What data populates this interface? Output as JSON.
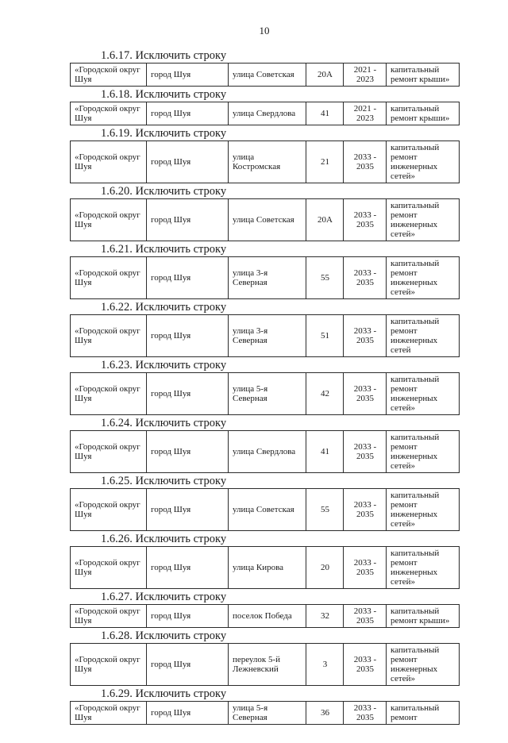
{
  "page_number": "10",
  "sections": [
    {
      "heading": "1.6.17. Исключить строку",
      "row": {
        "district": "«Городской округ Шуя",
        "city": "город Шуя",
        "street": "улица Советская",
        "house": "20А",
        "years": "2021 - 2023",
        "work": "капитальный ремонт крыши»"
      }
    },
    {
      "heading": "1.6.18. Исключить строку",
      "row": {
        "district": "«Городской округ Шуя",
        "city": "город Шуя",
        "street": "улица Свердлова",
        "house": "41",
        "years": "2021 - 2023",
        "work": "капитальный ремонт крыши»"
      }
    },
    {
      "heading": "1.6.19. Исключить строку",
      "row": {
        "district": "«Городской округ Шуя",
        "city": "город Шуя",
        "street": "улица Костромская",
        "house": "21",
        "years": "2033 - 2035",
        "work": "капитальный ремонт инженерных сетей»"
      }
    },
    {
      "heading": "1.6.20. Исключить строку",
      "row": {
        "district": "«Городской округ Шуя",
        "city": "город Шуя",
        "street": "улица Советская",
        "house": "20А",
        "years": "2033 - 2035",
        "work": "капитальный ремонт инженерных сетей»"
      }
    },
    {
      "heading": "1.6.21. Исключить строку",
      "row": {
        "district": "«Городской округ Шуя",
        "city": "город Шуя",
        "street": "улица 3-я Северная",
        "house": "55",
        "years": "2033 - 2035",
        "work": "капитальный ремонт инженерных сетей»"
      }
    },
    {
      "heading": "1.6.22. Исключить строку",
      "row": {
        "district": "«Городской округ Шуя",
        "city": "город Шуя",
        "street": "улица 3-я Северная",
        "house": "51",
        "years": "2033 - 2035",
        "work": "капитальный ремонт инженерных сетей"
      }
    },
    {
      "heading": "1.6.23. Исключить строку",
      "row": {
        "district": "«Городской округ Шуя",
        "city": "город Шуя",
        "street": "улица 5-я Северная",
        "house": "42",
        "years": "2033 - 2035",
        "work": "капитальный ремонт инженерных сетей»"
      }
    },
    {
      "heading": "1.6.24. Исключить строку",
      "row": {
        "district": "«Городской округ Шуя",
        "city": "город Шуя",
        "street": "улица Свердлова",
        "house": "41",
        "years": "2033 - 2035",
        "work": "капитальный ремонт инженерных сетей»"
      }
    },
    {
      "heading": "1.6.25. Исключить строку",
      "row": {
        "district": "«Городской округ Шуя",
        "city": "город Шуя",
        "street": "улица Советская",
        "house": "55",
        "years": "2033 - 2035",
        "work": "капитальный ремонт инженерных сетей»"
      }
    },
    {
      "heading": "1.6.26. Исключить строку",
      "row": {
        "district": "«Городской округ Шуя",
        "city": "город Шуя",
        "street": "улица Кирова",
        "house": "20",
        "years": "2033 - 2035",
        "work": "капитальный ремонт инженерных сетей»"
      }
    },
    {
      "heading": "1.6.27. Исключить строку",
      "row": {
        "district": "«Городской округ Шуя",
        "city": "город Шуя",
        "street": "поселок Победа",
        "house": "32",
        "years": "2033 - 2035",
        "work": "капитальный ремонт крыши»"
      }
    },
    {
      "heading": "1.6.28. Исключить строку",
      "row": {
        "district": "«Городской округ Шуя",
        "city": "город Шуя",
        "street": "переулок 5-й Лежневский",
        "house": "3",
        "years": "2033 - 2035",
        "work": "капитальный ремонт инженерных сетей»"
      }
    },
    {
      "heading": "1.6.29. Исключить строку",
      "row": {
        "district": "«Городской округ Шуя",
        "city": "город Шуя",
        "street": "улица 5-я Северная",
        "house": "36",
        "years": "2033 - 2035",
        "work": "капитальный ремонт"
      }
    }
  ]
}
